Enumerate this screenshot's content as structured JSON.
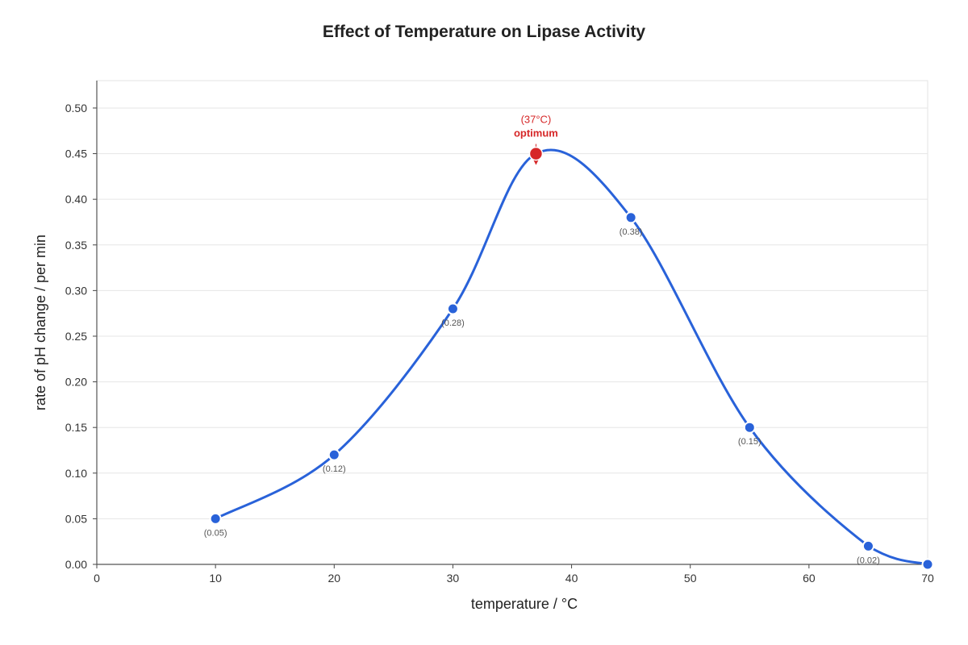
{
  "chart_data": {
    "type": "line",
    "title": "Effect of Temperature on Lipase Activity",
    "xlabel": "temperature / °C",
    "ylabel": "rate of pH change / per min",
    "xlim": [
      0,
      70
    ],
    "ylim": [
      0,
      0.53
    ],
    "xticks": [
      0,
      10,
      20,
      30,
      40,
      50,
      60,
      70
    ],
    "yticks": [
      0.0,
      0.05,
      0.1,
      0.15,
      0.2,
      0.25,
      0.3,
      0.35,
      0.4,
      0.45,
      0.5
    ],
    "xtick_labels": [
      "0",
      "10",
      "20",
      "30",
      "40",
      "50",
      "60",
      "70"
    ],
    "ytick_labels": [
      "0.00",
      "0.05",
      "0.10",
      "0.15",
      "0.20",
      "0.25",
      "0.30",
      "0.35",
      "0.40",
      "0.45",
      "0.50"
    ],
    "grid": true,
    "series": [
      {
        "x": [
          10,
          20,
          30,
          37,
          45,
          55,
          65,
          70
        ],
        "y": [
          0.05,
          0.12,
          0.28,
          0.45,
          0.38,
          0.15,
          0.02,
          0.0
        ],
        "labels": [
          "(0.05)",
          "(0.12)",
          "(0.28)",
          "",
          "(0.38)",
          "(0.15)",
          "(0.02)",
          ""
        ],
        "color": "#2962d9"
      }
    ],
    "annotations": [
      {
        "x": 37,
        "y": 0.45,
        "line1": "(37°C)",
        "line2": "optimum",
        "color": "#d62728"
      }
    ]
  }
}
